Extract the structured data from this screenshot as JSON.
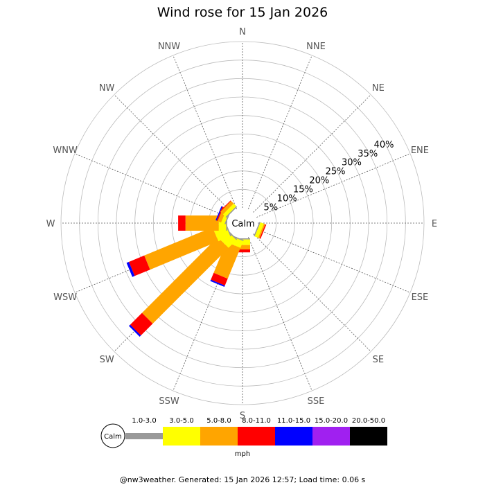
{
  "chart_data": {
    "type": "windrose",
    "title": "Wind rose for 15 Jan 2026",
    "directions": [
      "N",
      "NNE",
      "NE",
      "ENE",
      "E",
      "ESE",
      "SE",
      "SSE",
      "S",
      "SSW",
      "SW",
      "WSW",
      "W",
      "WNW",
      "NW",
      "NNW"
    ],
    "radial_ticks": [
      "5%",
      "10%",
      "15%",
      "20%",
      "25%",
      "30%",
      "35%",
      "40%"
    ],
    "radial_max": 45,
    "calm_label": "Calm",
    "speed_unit": "mph",
    "bins": [
      {
        "label": "1.0-3.0",
        "color": "#999999"
      },
      {
        "label": "3.0-5.0",
        "color": "#ffff00"
      },
      {
        "label": "5.0-8.0",
        "color": "#ffa500"
      },
      {
        "label": "8.0-11.0",
        "color": "#ff0000"
      },
      {
        "label": "11.0-15.0",
        "color": "#0000ff"
      },
      {
        "label": "15.0-20.0",
        "color": "#a020f0"
      },
      {
        "label": "20.0-50.0",
        "color": "#000000"
      }
    ],
    "series": [
      {
        "direction": "N",
        "values": [
          0,
          0,
          0,
          0,
          0,
          0,
          0
        ]
      },
      {
        "direction": "NNE",
        "values": [
          0,
          0,
          0,
          0,
          0,
          0,
          0
        ]
      },
      {
        "direction": "NE",
        "values": [
          0,
          0,
          0,
          0,
          0,
          0,
          0
        ]
      },
      {
        "direction": "ENE",
        "values": [
          0,
          0,
          0,
          0,
          0,
          0,
          0
        ]
      },
      {
        "direction": "E",
        "values": [
          0,
          0,
          0,
          0,
          0,
          0,
          0
        ]
      },
      {
        "direction": "ESE",
        "values": [
          0.3,
          1.0,
          0.4,
          0.3,
          0,
          0,
          0
        ]
      },
      {
        "direction": "SE",
        "values": [
          0,
          0,
          0,
          0,
          0,
          0,
          0
        ]
      },
      {
        "direction": "SSE",
        "values": [
          0,
          0,
          0,
          0,
          0,
          0,
          0
        ]
      },
      {
        "direction": "S",
        "values": [
          0.3,
          1.5,
          1.2,
          0.8,
          0,
          0,
          0
        ]
      },
      {
        "direction": "SSW",
        "values": [
          0.3,
          2.0,
          9.0,
          2.0,
          0.4,
          0,
          0
        ]
      },
      {
        "direction": "SW",
        "values": [
          0.3,
          3.0,
          29.0,
          4.5,
          0.5,
          0,
          0
        ]
      },
      {
        "direction": "WSW",
        "values": [
          0.3,
          3.5,
          20.0,
          4.5,
          0.7,
          0,
          0
        ]
      },
      {
        "direction": "W",
        "values": [
          0.3,
          2.0,
          9.0,
          2.0,
          0,
          0,
          0
        ]
      },
      {
        "direction": "WNW",
        "values": [
          0.3,
          1.0,
          1.0,
          0.3,
          0.3,
          0,
          0
        ]
      },
      {
        "direction": "NW",
        "values": [
          0.3,
          1.0,
          1.0,
          0.2,
          0,
          0,
          0
        ]
      },
      {
        "direction": "NNW",
        "values": [
          0,
          0,
          0,
          0,
          0,
          0,
          0
        ]
      }
    ],
    "grid": true
  },
  "footer": "@nw3weather. Generated: 15 Jan 2026 12:57; Load time: 0.06 s"
}
